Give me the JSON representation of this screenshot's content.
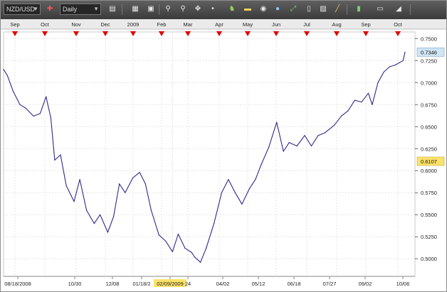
{
  "toolbar": {
    "symbol": "NZD/USD",
    "period": "Daily",
    "colors": {
      "bg": "#4a4a4a",
      "icon": "#e8e8e8"
    },
    "icons": [
      "bar-type-icon",
      "compare-icon",
      "layout-icon",
      "zoom-in-icon",
      "zoom-out-icon",
      "crosshair-icon",
      "indicator-icon",
      "note-icon",
      "eye-icon",
      "globe-icon",
      "stock-icon",
      "window-icon",
      "chart-icon",
      "line-draw-icon",
      "bar-icon",
      "print-icon",
      "eraser-icon"
    ]
  },
  "chart_data": {
    "type": "line",
    "title": "",
    "xlabel": "",
    "ylabel": "",
    "ylim": [
      0.48,
      0.7575
    ],
    "grid": true,
    "line_color": "#2e2a8c",
    "series": [
      {
        "x": [
          "2008-08-18",
          "2008-08-22",
          "2008-08-28",
          "2008-09-04",
          "2008-09-10",
          "2008-09-18",
          "2008-09-25",
          "2008-10-01",
          "2008-10-06",
          "2008-10-10",
          "2008-10-16",
          "2008-10-22",
          "2008-10-30",
          "2008-11-05",
          "2008-11-12",
          "2008-11-20",
          "2008-11-26",
          "2008-12-04",
          "2008-12-10",
          "2008-12-16",
          "2008-12-22",
          "2008-12-30",
          "2009-01-06",
          "2009-01-12",
          "2009-01-18",
          "2009-01-26",
          "2009-02-02",
          "2009-02-09",
          "2009-02-15",
          "2009-02-22",
          "2009-03-01",
          "2009-03-04",
          "2009-03-10",
          "2009-03-16",
          "2009-03-24",
          "2009-04-01",
          "2009-04-08",
          "2009-04-15",
          "2009-04-22",
          "2009-04-30",
          "2009-05-06",
          "2009-05-12",
          "2009-05-20",
          "2009-05-28",
          "2009-06-04",
          "2009-06-10",
          "2009-06-18",
          "2009-06-26",
          "2009-07-03",
          "2009-07-10",
          "2009-07-17",
          "2009-07-27",
          "2009-08-03",
          "2009-08-10",
          "2009-08-17",
          "2009-08-24",
          "2009-08-31",
          "2009-09-04",
          "2009-09-10",
          "2009-09-16",
          "2009-09-22",
          "2009-09-28",
          "2009-10-06",
          "2009-10-08"
        ],
        "y": [
          0.715,
          0.708,
          0.69,
          0.675,
          0.671,
          0.662,
          0.665,
          0.684,
          0.66,
          0.612,
          0.618,
          0.583,
          0.565,
          0.59,
          0.555,
          0.54,
          0.55,
          0.53,
          0.548,
          0.585,
          0.575,
          0.592,
          0.598,
          0.585,
          0.555,
          0.527,
          0.52,
          0.508,
          0.528,
          0.512,
          0.507,
          0.502,
          0.496,
          0.512,
          0.54,
          0.575,
          0.59,
          0.575,
          0.562,
          0.58,
          0.59,
          0.607,
          0.627,
          0.655,
          0.622,
          0.632,
          0.628,
          0.64,
          0.628,
          0.64,
          0.643,
          0.652,
          0.662,
          0.668,
          0.68,
          0.678,
          0.688,
          0.675,
          0.7,
          0.712,
          0.718,
          0.72,
          0.725,
          0.7346
        ]
      }
    ],
    "y_ticks": [
      "0.7500",
      "0.7250",
      "0.7000",
      "0.6750",
      "0.6500",
      "0.6250",
      "0.6000",
      "0.5750",
      "0.5500",
      "0.5250",
      "0.5000"
    ],
    "month_labels": [
      "Sep",
      "Oct",
      "Nov",
      "Dec",
      "2009",
      "Feb",
      "Mar",
      "Apr",
      "May",
      "Jun",
      "Jul",
      "Aug",
      "Sep",
      "Oct"
    ],
    "date_labels": [
      "08/18/2008",
      "10/30",
      "12/08",
      "01/18/2",
      "02/09/2009",
      "24",
      "04/02",
      "05/12",
      "06/18",
      "07/27",
      "09/02",
      "10/06"
    ],
    "last_price": {
      "label": "0.7346",
      "value": 0.7346,
      "color": "#cfe4f5"
    },
    "crosshair": {
      "date_label": "02/09/2009",
      "price_label": "0.6107",
      "value": 0.6107,
      "color": "#fce26b"
    },
    "marker_color": "#e00000"
  }
}
